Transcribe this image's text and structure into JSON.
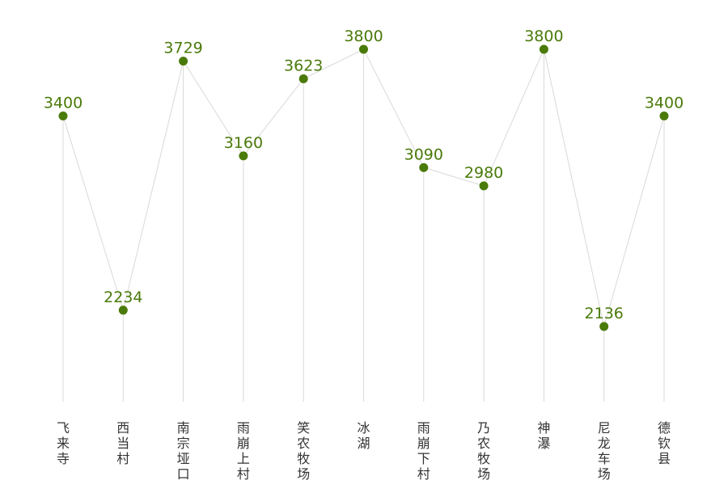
{
  "chart_data": {
    "type": "line",
    "title": "",
    "xlabel": "",
    "ylabel": "",
    "ylim": [
      0,
      4100
    ],
    "grid": false,
    "categories": [
      "飞来寺",
      "西当村",
      "南宗垭口",
      "雨崩上村",
      "笑农牧场",
      "冰湖",
      "雨崩下村",
      "乃农牧场",
      "神瀑",
      "尼龙车场",
      "德钦县"
    ],
    "values": [
      3400,
      2234,
      3729,
      3160,
      3623,
      3800,
      3090,
      2980,
      3800,
      2136,
      3400
    ],
    "colors": {
      "point": "#4a7a0a",
      "label": "#4a7a0a",
      "line": "#d9d9d9",
      "category_text": "#333333"
    }
  }
}
